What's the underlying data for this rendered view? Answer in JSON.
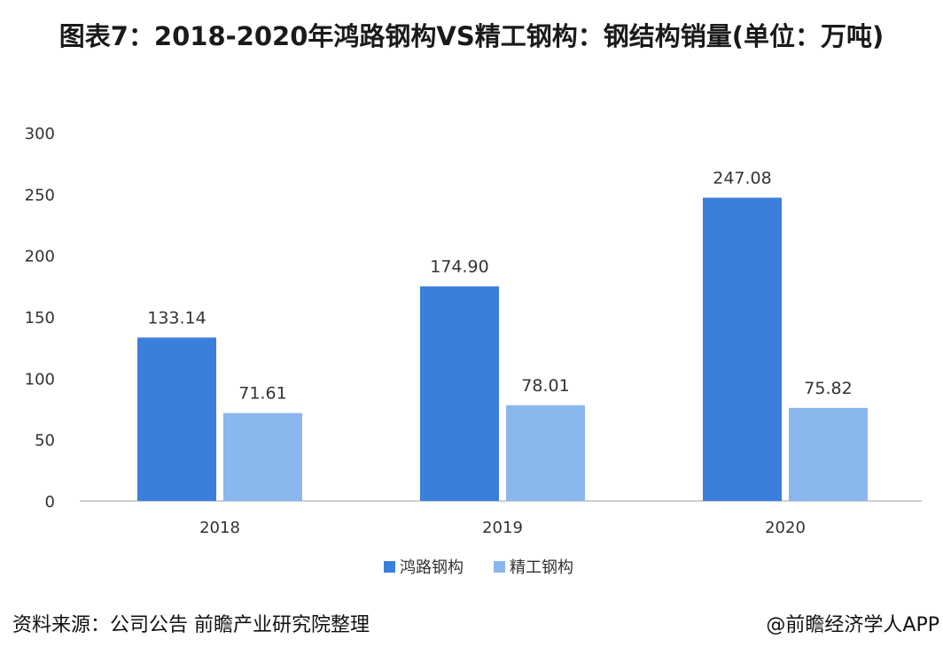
{
  "title": "图表7：2018-2020年鸿路钢构VS精工钢构：钢结构销量(单位：万吨)",
  "source": "资料来源：公司公告 前瞻产业研究院整理",
  "credit": "@前瞻经济学人APP",
  "colors": {
    "series1": "#3b7fdc",
    "series2": "#8ab7ee",
    "axis": "#bfbfbf",
    "label": "#333333"
  },
  "chart_data": {
    "type": "bar",
    "title": "图表7：2018-2020年鸿路钢构VS精工钢构：钢结构销量(单位：万吨)",
    "categories": [
      "2018",
      "2019",
      "2020"
    ],
    "series": [
      {
        "name": "鸿路钢构",
        "values": [
          133.14,
          174.9,
          247.08
        ],
        "labels": [
          "133.14",
          "174.90",
          "247.08"
        ]
      },
      {
        "name": "精工钢构",
        "values": [
          71.61,
          78.01,
          75.82
        ],
        "labels": [
          "71.61",
          "78.01",
          "75.82"
        ]
      }
    ],
    "yticks": [
      "0",
      "50",
      "100",
      "150",
      "200",
      "250",
      "300"
    ],
    "ylim": [
      0,
      300
    ],
    "grid": false,
    "legend": "bottom-center"
  }
}
